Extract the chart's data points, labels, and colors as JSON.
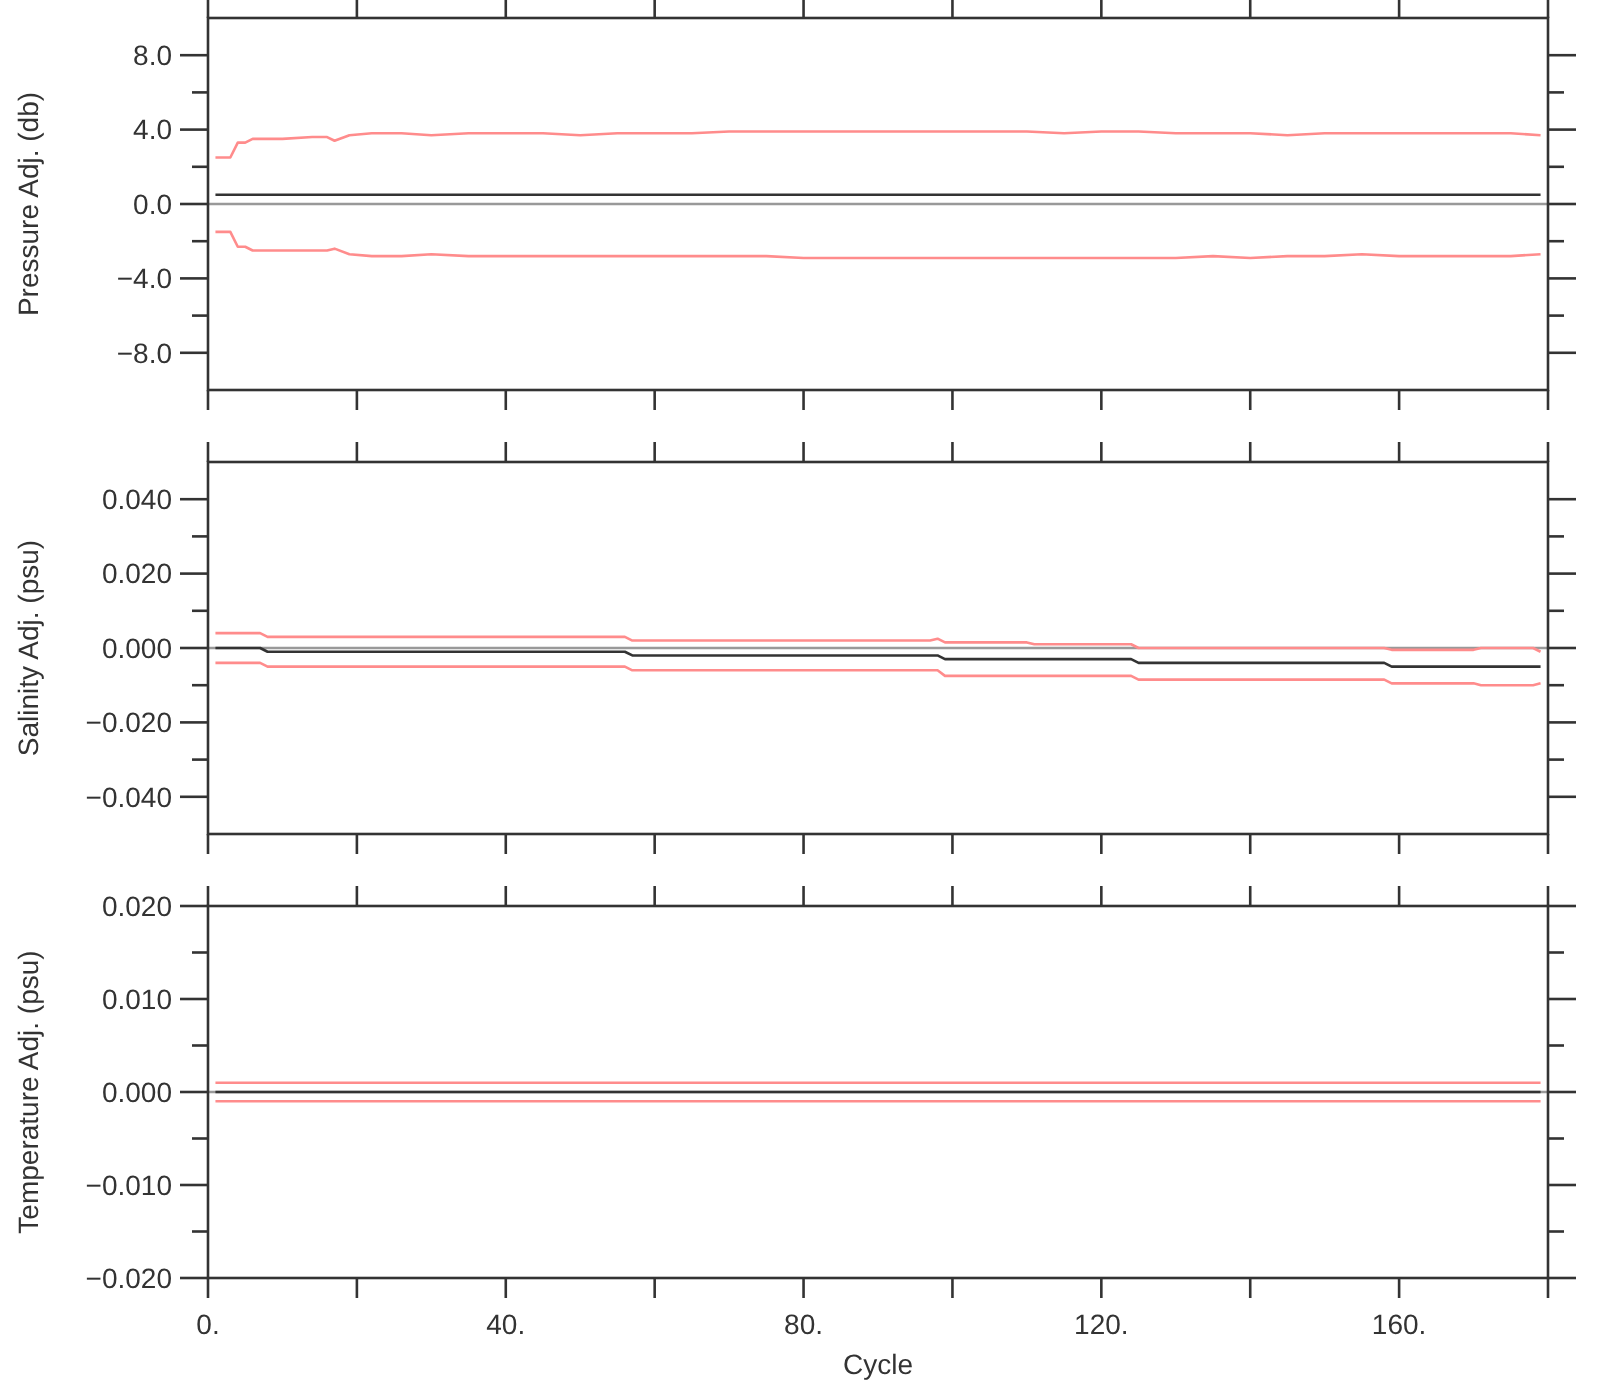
{
  "chart_data": [
    {
      "type": "line",
      "ylabel": "Pressure Adj. (db)",
      "xlim": [
        0,
        180
      ],
      "xticks": [
        {
          "value": 0,
          "label": null
        },
        {
          "value": 20,
          "label": null
        },
        {
          "value": 40,
          "label": null
        },
        {
          "value": 60,
          "label": null
        },
        {
          "value": 80,
          "label": null
        },
        {
          "value": 100,
          "label": null
        },
        {
          "value": 120,
          "label": null
        },
        {
          "value": 140,
          "label": null
        },
        {
          "value": 160,
          "label": null
        }
      ],
      "ylim": [
        -10,
        10
      ],
      "yticks": [
        {
          "value": -8,
          "label": "−8.0"
        },
        {
          "value": -6,
          "label": null
        },
        {
          "value": -4,
          "label": "−4.0"
        },
        {
          "value": -2,
          "label": null
        },
        {
          "value": 0,
          "label": "0.0"
        },
        {
          "value": 2,
          "label": null
        },
        {
          "value": 4,
          "label": "4.0"
        },
        {
          "value": 6,
          "label": null
        },
        {
          "value": 8,
          "label": "8.0"
        }
      ],
      "tick_labels": "y",
      "ref_lines": [
        {
          "axis": "y",
          "value": 0,
          "color": "#999999"
        }
      ],
      "series": [
        {
          "color": "#333333",
          "x": [
            1,
            179
          ],
          "values": [
            0.5,
            0.5
          ]
        },
        {
          "color": "#ff8c8c",
          "x": [
            1,
            3,
            4,
            5,
            6,
            10,
            14,
            16,
            17,
            19,
            22,
            26,
            30,
            35,
            40,
            45,
            50,
            55,
            60,
            65,
            70,
            75,
            80,
            85,
            90,
            95,
            100,
            105,
            110,
            115,
            120,
            125,
            130,
            135,
            140,
            145,
            150,
            155,
            160,
            165,
            170,
            175,
            179
          ],
          "values": [
            2.5,
            2.5,
            3.3,
            3.3,
            3.5,
            3.5,
            3.6,
            3.6,
            3.4,
            3.7,
            3.8,
            3.8,
            3.7,
            3.8,
            3.8,
            3.8,
            3.7,
            3.8,
            3.8,
            3.8,
            3.9,
            3.9,
            3.9,
            3.9,
            3.9,
            3.9,
            3.9,
            3.9,
            3.9,
            3.8,
            3.9,
            3.9,
            3.8,
            3.8,
            3.8,
            3.7,
            3.8,
            3.8,
            3.8,
            3.8,
            3.8,
            3.8,
            3.7
          ]
        },
        {
          "color": "#ff8c8c",
          "x": [
            1,
            3,
            4,
            5,
            6,
            10,
            14,
            16,
            17,
            19,
            22,
            26,
            30,
            35,
            40,
            45,
            50,
            55,
            60,
            65,
            70,
            75,
            80,
            85,
            90,
            95,
            100,
            105,
            110,
            115,
            120,
            125,
            130,
            135,
            140,
            145,
            150,
            155,
            160,
            165,
            170,
            175,
            179
          ],
          "values": [
            -1.5,
            -1.5,
            -2.3,
            -2.3,
            -2.5,
            -2.5,
            -2.5,
            -2.5,
            -2.4,
            -2.7,
            -2.8,
            -2.8,
            -2.7,
            -2.8,
            -2.8,
            -2.8,
            -2.8,
            -2.8,
            -2.8,
            -2.8,
            -2.8,
            -2.8,
            -2.9,
            -2.9,
            -2.9,
            -2.9,
            -2.9,
            -2.9,
            -2.9,
            -2.9,
            -2.9,
            -2.9,
            -2.9,
            -2.8,
            -2.9,
            -2.8,
            -2.8,
            -2.7,
            -2.8,
            -2.8,
            -2.8,
            -2.8,
            -2.7
          ]
        }
      ]
    },
    {
      "type": "line",
      "ylabel": "Salinity Adj. (psu)",
      "xlim": [
        0,
        180
      ],
      "xticks": [
        {
          "value": 0,
          "label": null
        },
        {
          "value": 20,
          "label": null
        },
        {
          "value": 40,
          "label": null
        },
        {
          "value": 60,
          "label": null
        },
        {
          "value": 80,
          "label": null
        },
        {
          "value": 100,
          "label": null
        },
        {
          "value": 120,
          "label": null
        },
        {
          "value": 140,
          "label": null
        },
        {
          "value": 160,
          "label": null
        }
      ],
      "ylim": [
        -0.05,
        0.05
      ],
      "yticks": [
        {
          "value": -0.04,
          "label": "−0.040"
        },
        {
          "value": -0.03,
          "label": null
        },
        {
          "value": -0.02,
          "label": "−0.020"
        },
        {
          "value": -0.01,
          "label": null
        },
        {
          "value": 0,
          "label": "0.000"
        },
        {
          "value": 0.01,
          "label": null
        },
        {
          "value": 0.02,
          "label": "0.020"
        },
        {
          "value": 0.03,
          "label": null
        },
        {
          "value": 0.04,
          "label": "0.040"
        }
      ],
      "tick_labels": "y",
      "ref_lines": [
        {
          "axis": "y",
          "value": 0,
          "color": "#999999"
        }
      ],
      "series": [
        {
          "color": "#333333",
          "x": [
            1,
            7,
            8,
            56,
            57,
            98,
            99,
            124,
            125,
            158,
            159,
            179
          ],
          "values": [
            0,
            0,
            -0.001,
            -0.001,
            -0.002,
            -0.002,
            -0.003,
            -0.003,
            -0.004,
            -0.004,
            -0.005,
            -0.005
          ]
        },
        {
          "color": "#ff8c8c",
          "x": [
            1,
            7,
            8,
            56,
            57,
            97,
            98,
            99,
            110,
            111,
            124,
            125,
            158,
            159,
            170,
            171,
            178,
            179
          ],
          "values": [
            0.004,
            0.004,
            0.003,
            0.003,
            0.002,
            0.002,
            0.0025,
            0.0015,
            0.0015,
            0.001,
            0.001,
            0,
            0,
            -0.0005,
            -0.0005,
            0,
            0,
            -0.001
          ]
        },
        {
          "color": "#ff8c8c",
          "x": [
            1,
            7,
            8,
            56,
            57,
            98,
            99,
            124,
            125,
            158,
            159,
            170,
            171,
            178,
            179
          ],
          "values": [
            -0.004,
            -0.004,
            -0.005,
            -0.005,
            -0.006,
            -0.006,
            -0.0075,
            -0.0075,
            -0.0085,
            -0.0085,
            -0.0095,
            -0.0095,
            -0.01,
            -0.01,
            -0.0095
          ]
        }
      ]
    },
    {
      "type": "line",
      "ylabel": "Temperature Adj. (psu)",
      "xlabel": "Cycle",
      "xlim": [
        0,
        180
      ],
      "xticks": [
        {
          "value": 0,
          "label": "0."
        },
        {
          "value": 20,
          "label": null
        },
        {
          "value": 40,
          "label": "40."
        },
        {
          "value": 60,
          "label": null
        },
        {
          "value": 80,
          "label": "80."
        },
        {
          "value": 100,
          "label": null
        },
        {
          "value": 120,
          "label": "120."
        },
        {
          "value": 140,
          "label": null
        },
        {
          "value": 160,
          "label": "160."
        }
      ],
      "ylim": [
        -0.02,
        0.02
      ],
      "yticks": [
        {
          "value": -0.02,
          "label": "−0.020"
        },
        {
          "value": -0.015,
          "label": null
        },
        {
          "value": -0.01,
          "label": "−0.010"
        },
        {
          "value": -0.005,
          "label": null
        },
        {
          "value": 0,
          "label": "0.000"
        },
        {
          "value": 0.005,
          "label": null
        },
        {
          "value": 0.01,
          "label": "0.010"
        },
        {
          "value": 0.015,
          "label": null
        },
        {
          "value": 0.02,
          "label": "0.020"
        }
      ],
      "ref_lines": [
        {
          "axis": "y",
          "value": 0,
          "color": "#999999"
        }
      ],
      "series": [
        {
          "color": "#333333",
          "x": [
            1,
            179
          ],
          "values": [
            0,
            0
          ]
        },
        {
          "color": "#ff8c8c",
          "x": [
            1,
            179
          ],
          "values": [
            0.001,
            0.001
          ]
        },
        {
          "color": "#ff8c8c",
          "x": [
            1,
            179
          ],
          "values": [
            -0.001,
            -0.001
          ]
        }
      ]
    }
  ]
}
